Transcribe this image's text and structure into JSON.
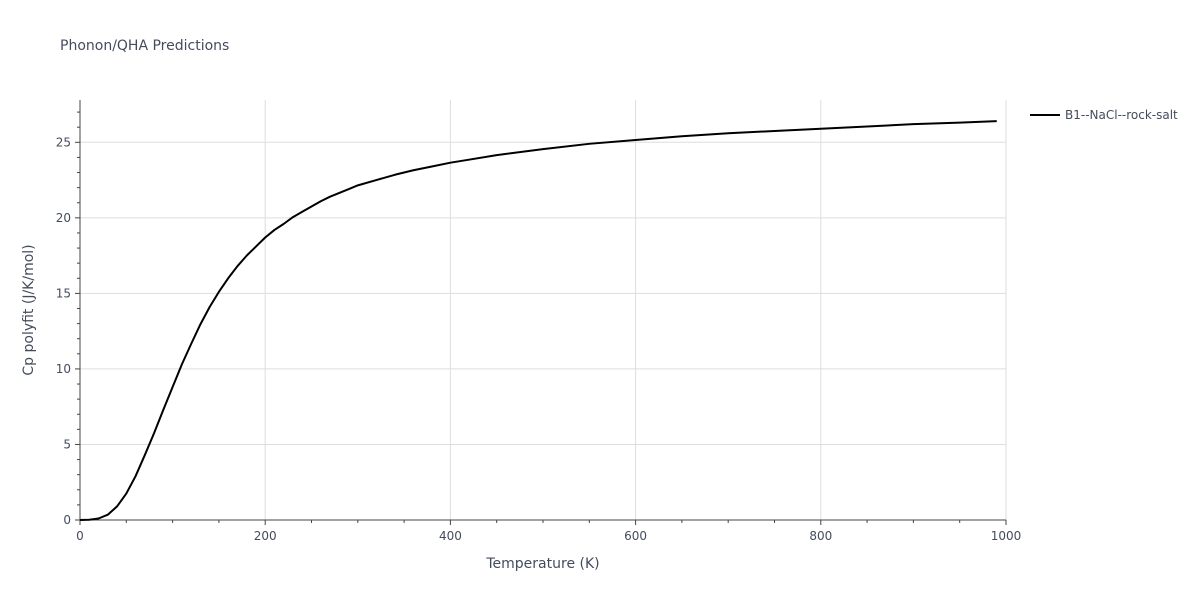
{
  "chart_data": {
    "type": "line",
    "title": "Phonon/QHA Predictions",
    "xlabel": "Temperature (K)",
    "ylabel": "Cp polyfit (J/K/mol)",
    "xlim": [
      0,
      1000
    ],
    "ylim": [
      0,
      27.8
    ],
    "xticks": [
      0,
      200,
      400,
      600,
      800,
      1000
    ],
    "yticks": [
      0,
      5,
      10,
      15,
      20,
      25
    ],
    "grid": true,
    "legend_position": "top-right",
    "series": [
      {
        "name": "B1--NaCl--rock-salt",
        "color": "#000000",
        "x": [
          0,
          10,
          20,
          30,
          40,
          50,
          60,
          70,
          80,
          90,
          100,
          110,
          120,
          130,
          140,
          150,
          160,
          170,
          180,
          190,
          200,
          210,
          220,
          230,
          240,
          250,
          260,
          270,
          280,
          290,
          300,
          320,
          340,
          360,
          380,
          400,
          420,
          450,
          500,
          550,
          600,
          650,
          700,
          750,
          800,
          850,
          900,
          950,
          990
        ],
        "values": [
          0,
          0.02,
          0.1,
          0.35,
          0.9,
          1.75,
          2.9,
          4.3,
          5.75,
          7.3,
          8.8,
          10.3,
          11.65,
          12.95,
          14.1,
          15.1,
          16.0,
          16.8,
          17.5,
          18.1,
          18.7,
          19.2,
          19.6,
          20.05,
          20.4,
          20.75,
          21.1,
          21.4,
          21.65,
          21.9,
          22.15,
          22.5,
          22.85,
          23.15,
          23.4,
          23.65,
          23.85,
          24.15,
          24.55,
          24.9,
          25.15,
          25.4,
          25.6,
          25.75,
          25.9,
          26.05,
          26.2,
          26.3,
          26.4
        ]
      }
    ]
  }
}
